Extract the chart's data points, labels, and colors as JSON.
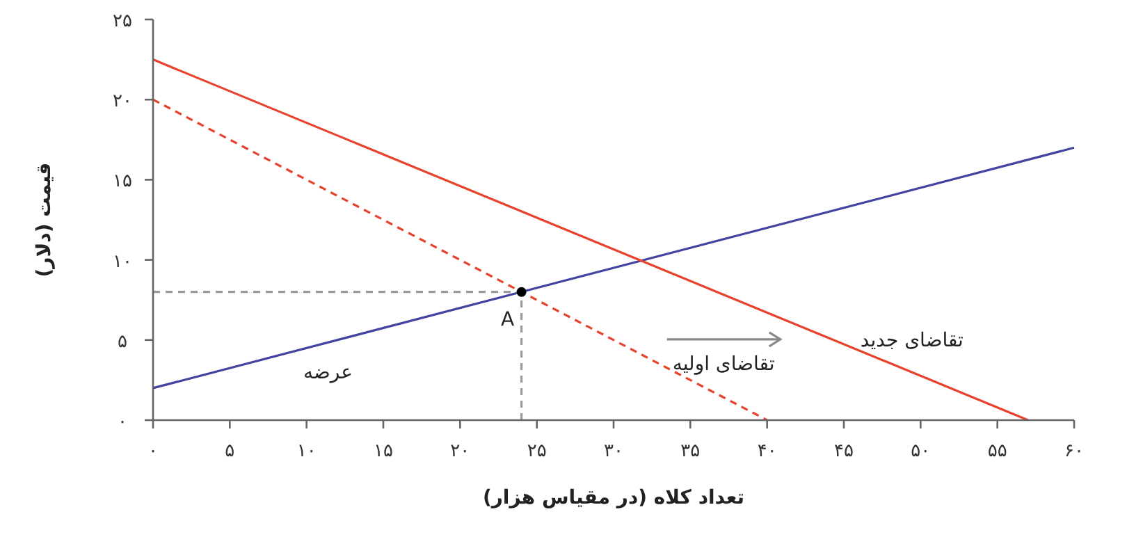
{
  "chart_data": {
    "type": "line",
    "xlabel": "تعداد کلاه (در مقیاس هزار)",
    "ylabel": "قیمت (دلار)",
    "xlim": [
      0,
      60
    ],
    "ylim": [
      0,
      25
    ],
    "xticks": [
      {
        "value": 0,
        "label": "۰"
      },
      {
        "value": 5,
        "label": "۵"
      },
      {
        "value": 10,
        "label": "۱۰"
      },
      {
        "value": 15,
        "label": "۱۵"
      },
      {
        "value": 20,
        "label": "۲۰"
      },
      {
        "value": 25,
        "label": "۲۵"
      },
      {
        "value": 30,
        "label": "۳۰"
      },
      {
        "value": 35,
        "label": "۳۵"
      },
      {
        "value": 40,
        "label": "۴۰"
      },
      {
        "value": 45,
        "label": "۴۵"
      },
      {
        "value": 50,
        "label": "۵۰"
      },
      {
        "value": 55,
        "label": "۵۵"
      },
      {
        "value": 60,
        "label": "۶۰"
      }
    ],
    "yticks": [
      {
        "value": 0,
        "label": "۰"
      },
      {
        "value": 5,
        "label": "۵"
      },
      {
        "value": 10,
        "label": "۱۰"
      },
      {
        "value": 15,
        "label": "۱۵"
      },
      {
        "value": 20,
        "label": "۲۰"
      },
      {
        "value": 25,
        "label": "۲۵"
      }
    ],
    "grid": false,
    "series": [
      {
        "name": "عرضه",
        "color": "#4343a0",
        "x": [
          0,
          60
        ],
        "values": [
          2,
          17
        ],
        "line_style": "solid"
      },
      {
        "name": "تقاضای اولیه",
        "color": "#e8412c",
        "x": [
          0,
          40
        ],
        "values": [
          20,
          0
        ],
        "line_style": "dashed"
      },
      {
        "name": "تقاضای جدید",
        "color": "#e8412c",
        "x": [
          0,
          57
        ],
        "values": [
          22.5,
          0
        ],
        "line_style": "solid"
      },
      {
        "color": "#9a9a9a",
        "x": [
          0,
          24
        ],
        "values": [
          8,
          8
        ],
        "line_style": "dashed"
      },
      {
        "color": "#9a9a9a",
        "x": [
          24,
          24
        ],
        "values": [
          0,
          8
        ],
        "line_style": "dashed"
      },
      {
        "name": "A",
        "type": "scatter",
        "color": "#000000",
        "x": [
          24
        ],
        "values": [
          8
        ],
        "marker": "circle"
      }
    ]
  }
}
